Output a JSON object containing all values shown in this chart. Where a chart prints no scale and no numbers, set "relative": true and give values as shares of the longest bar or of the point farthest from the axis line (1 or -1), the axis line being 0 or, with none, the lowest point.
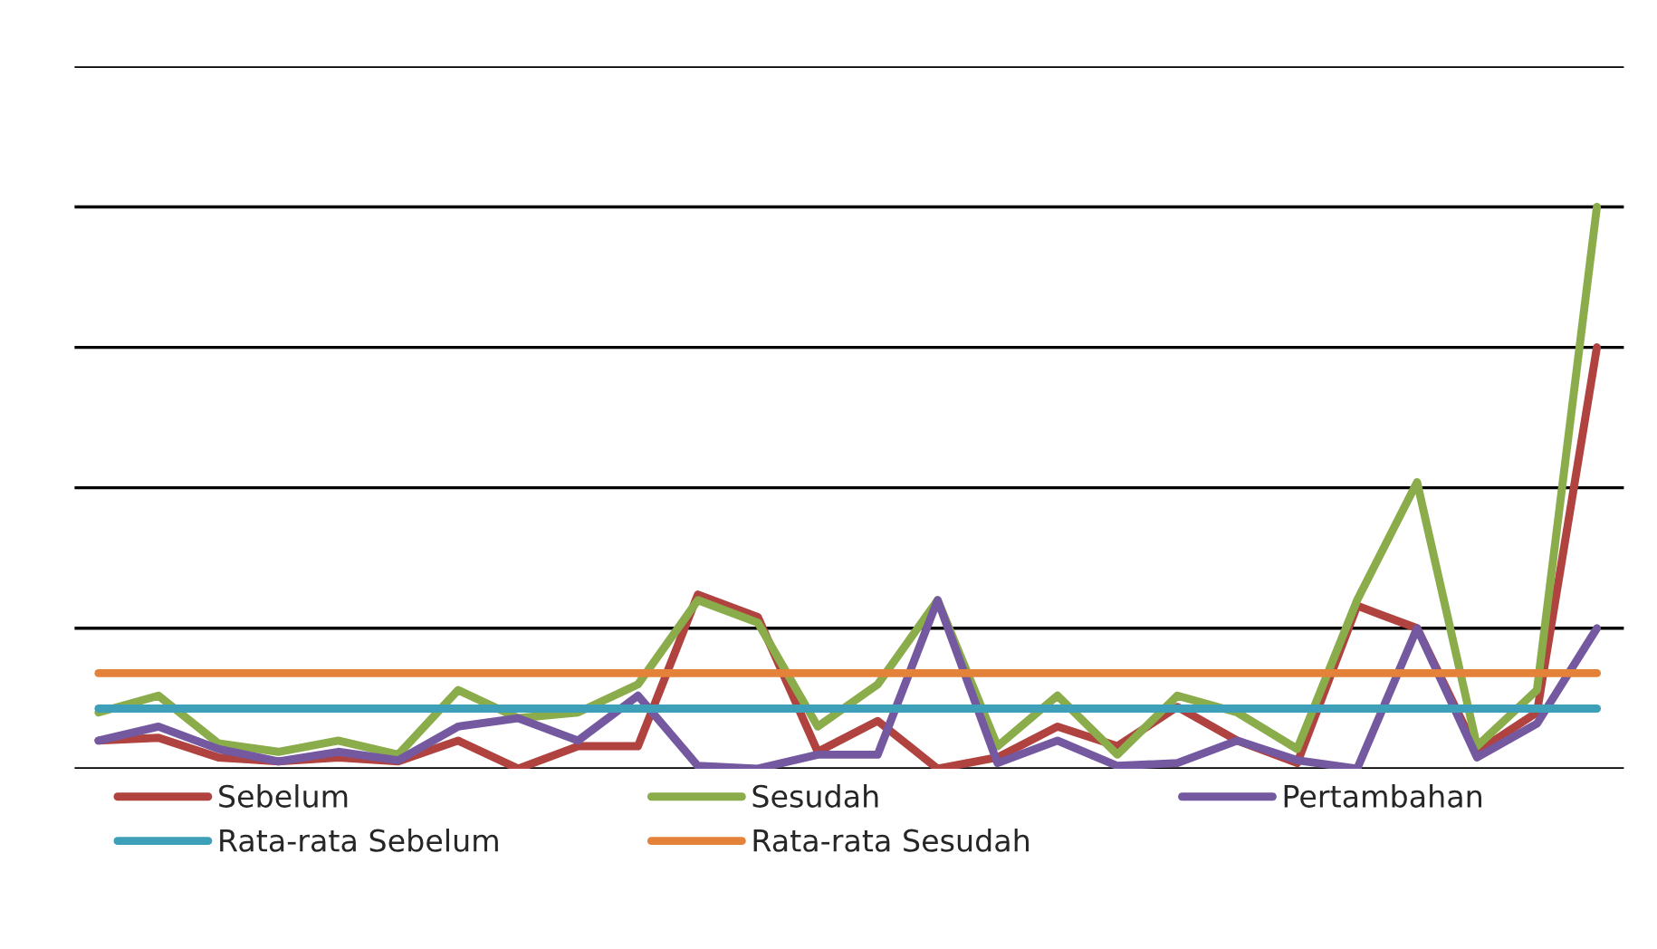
{
  "chart_data": {
    "type": "line",
    "relative": true,
    "grid": "y",
    "legend": "bottom",
    "tick_labels": false,
    "line_style": "solid",
    "marker": "none",
    "categories": [
      null,
      null,
      null,
      null,
      null,
      null,
      null,
      null,
      null,
      null,
      null,
      null,
      null,
      null,
      null,
      null,
      null,
      null,
      null,
      null,
      null,
      null,
      null,
      null,
      null,
      null
    ],
    "series": [
      {
        "name": "Sebelum",
        "color": "#b0433f",
        "values": [
          0.05,
          0.055,
          0.02,
          0.013,
          0.02,
          0.013,
          0.05,
          0,
          0.04,
          0.04,
          0.31,
          0.27,
          0.03,
          0.085,
          0,
          0.02,
          0.075,
          0.04,
          0.11,
          0.05,
          0.01,
          0.29,
          0.25,
          0.03,
          0.1,
          0.75
        ]
      },
      {
        "name": "Sesudah",
        "color": "#8aac4a",
        "values": [
          0.1,
          0.13,
          0.045,
          0.03,
          0.05,
          0.025,
          0.14,
          0.09,
          0.1,
          0.15,
          0.3,
          0.26,
          0.075,
          0.15,
          0.3,
          0.04,
          0.13,
          0.025,
          0.13,
          0.1,
          0.035,
          0.3,
          0.51,
          0.04,
          0.14,
          1.0
        ]
      },
      {
        "name": "Pertambahan",
        "color": "#7459a0",
        "values": [
          0.05,
          0.075,
          0.035,
          0.013,
          0.03,
          0.015,
          0.075,
          0.09,
          0.05,
          0.13,
          0.005,
          0,
          0.025,
          0.025,
          0.3,
          0.01,
          0.05,
          0.005,
          0.01,
          0.05,
          0.015,
          0,
          0.25,
          0.02,
          0.08,
          0.25
        ]
      },
      {
        "name": "Rata-rata Sebelum",
        "color": "#3e9fb8",
        "values": [
          0.107,
          0.107,
          0.107,
          0.107,
          0.107,
          0.107,
          0.107,
          0.107,
          0.107,
          0.107,
          0.107,
          0.107,
          0.107,
          0.107,
          0.107,
          0.107,
          0.107,
          0.107,
          0.107,
          0.107,
          0.107,
          0.107,
          0.107,
          0.107,
          0.107,
          0.107
        ]
      },
      {
        "name": "Rata-rata Sesudah",
        "color": "#e5823a",
        "values": [
          0.17,
          0.17,
          0.17,
          0.17,
          0.17,
          0.17,
          0.17,
          0.17,
          0.17,
          0.17,
          0.17,
          0.17,
          0.17,
          0.17,
          0.17,
          0.17,
          0.17,
          0.17,
          0.17,
          0.17,
          0.17,
          0.17,
          0.17,
          0.17,
          0.17,
          0.17
        ]
      }
    ]
  }
}
